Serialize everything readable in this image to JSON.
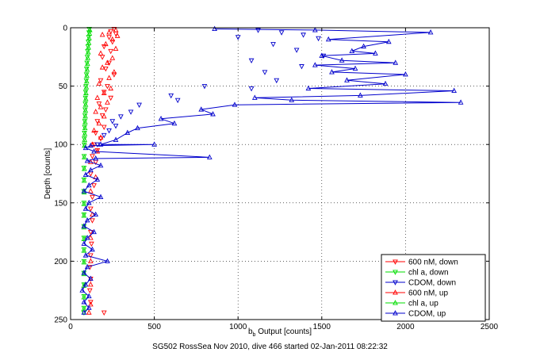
{
  "chart_data": {
    "type": "scatter",
    "xlabel_main": "b",
    "xlabel_sub": "b",
    "xlabel_rest": " Output [counts]",
    "ylabel": "Depth [counts]",
    "xlim": [
      0,
      2500
    ],
    "ylim": [
      250,
      0
    ],
    "y_reversed": true,
    "grid": true,
    "xticks": [
      0,
      500,
      1000,
      1500,
      2000,
      2500
    ],
    "yticks": [
      0,
      50,
      100,
      150,
      200,
      250
    ],
    "legend_position": "bottom-right",
    "caption": "SG502 RossSea Nov 2010, dive 466 started 02-Jan-2011 08:22:32",
    "series": [
      {
        "name": "600 nM, down",
        "color": "#ff0000",
        "marker": "triangle-down",
        "line": false,
        "points": [
          [
            260,
            1
          ],
          [
            240,
            3
          ],
          [
            270,
            5
          ],
          [
            230,
            8
          ],
          [
            250,
            12
          ],
          [
            200,
            16
          ],
          [
            240,
            20
          ],
          [
            190,
            25
          ],
          [
            230,
            30
          ],
          [
            210,
            35
          ],
          [
            260,
            40
          ],
          [
            180,
            45
          ],
          [
            220,
            50
          ],
          [
            200,
            55
          ],
          [
            240,
            60
          ],
          [
            170,
            65
          ],
          [
            210,
            70
          ],
          [
            190,
            75
          ],
          [
            160,
            80
          ],
          [
            200,
            85
          ],
          [
            150,
            90
          ],
          [
            180,
            95
          ],
          [
            140,
            100
          ],
          [
            160,
            105
          ],
          [
            130,
            110
          ],
          [
            150,
            115
          ],
          [
            120,
            125
          ],
          [
            140,
            135
          ],
          [
            130,
            145
          ],
          [
            120,
            155
          ],
          [
            130,
            165
          ],
          [
            120,
            175
          ],
          [
            125,
            185
          ],
          [
            120,
            195
          ],
          [
            115,
            205
          ],
          [
            120,
            215
          ],
          [
            115,
            225
          ],
          [
            120,
            235
          ],
          [
            200,
            244
          ]
        ]
      },
      {
        "name": "chl a, down",
        "color": "#00dd00",
        "marker": "triangle-down",
        "line": false,
        "points": [
          [
            112,
            1
          ],
          [
            110,
            4
          ],
          [
            108,
            8
          ],
          [
            106,
            12
          ],
          [
            104,
            16
          ],
          [
            102,
            20
          ],
          [
            100,
            25
          ],
          [
            98,
            30
          ],
          [
            96,
            35
          ],
          [
            95,
            40
          ],
          [
            94,
            45
          ],
          [
            92,
            50
          ],
          [
            90,
            55
          ],
          [
            89,
            60
          ],
          [
            88,
            65
          ],
          [
            87,
            70
          ],
          [
            86,
            75
          ],
          [
            85,
            80
          ],
          [
            84,
            85
          ],
          [
            83,
            90
          ],
          [
            82,
            95
          ],
          [
            82,
            100
          ],
          [
            81,
            110
          ],
          [
            80,
            120
          ],
          [
            80,
            130
          ],
          [
            80,
            140
          ],
          [
            80,
            150
          ],
          [
            80,
            160
          ],
          [
            80,
            170
          ],
          [
            80,
            180
          ],
          [
            80,
            190
          ],
          [
            80,
            200
          ],
          [
            80,
            210
          ],
          [
            80,
            220
          ],
          [
            80,
            230
          ],
          [
            80,
            240
          ],
          [
            80,
            244
          ]
        ]
      },
      {
        "name": "CDOM, down",
        "color": "#0000cc",
        "marker": "triangle-down",
        "line": false,
        "points": [
          [
            1120,
            2
          ],
          [
            1260,
            4
          ],
          [
            1390,
            6
          ],
          [
            1000,
            8
          ],
          [
            1480,
            9
          ],
          [
            1210,
            14
          ],
          [
            1350,
            19
          ],
          [
            1510,
            24
          ],
          [
            1080,
            28
          ],
          [
            1380,
            33
          ],
          [
            1160,
            38
          ],
          [
            1230,
            45
          ],
          [
            800,
            50
          ],
          [
            1080,
            52
          ],
          [
            600,
            58
          ],
          [
            640,
            62
          ],
          [
            410,
            66
          ],
          [
            360,
            72
          ],
          [
            300,
            76
          ],
          [
            250,
            80
          ],
          [
            270,
            84
          ],
          [
            230,
            88
          ],
          [
            200,
            92
          ],
          [
            160,
            100
          ]
        ]
      },
      {
        "name": "600 nM, up",
        "color": "#ff0000",
        "marker": "triangle-up",
        "line": false,
        "points": [
          [
            270,
            2
          ],
          [
            230,
            4
          ],
          [
            190,
            6
          ],
          [
            280,
            7
          ],
          [
            250,
            10
          ],
          [
            210,
            14
          ],
          [
            270,
            18
          ],
          [
            180,
            22
          ],
          [
            250,
            26
          ],
          [
            220,
            30
          ],
          [
            190,
            34
          ],
          [
            260,
            38
          ],
          [
            230,
            43
          ],
          [
            170,
            48
          ],
          [
            240,
            52
          ],
          [
            200,
            56
          ],
          [
            160,
            60
          ],
          [
            220,
            64
          ],
          [
            180,
            68
          ],
          [
            150,
            72
          ],
          [
            200,
            76
          ],
          [
            170,
            82
          ],
          [
            140,
            88
          ],
          [
            180,
            94
          ],
          [
            130,
            100
          ],
          [
            160,
            106
          ],
          [
            120,
            115
          ],
          [
            150,
            128
          ],
          [
            120,
            140
          ],
          [
            130,
            160
          ],
          [
            120,
            180
          ],
          [
            120,
            200
          ],
          [
            120,
            220
          ],
          [
            120,
            237
          ],
          [
            110,
            244
          ]
        ]
      },
      {
        "name": "chl a, up",
        "color": "#00dd00",
        "marker": "triangle-up",
        "line": false,
        "points": [
          [
            115,
            2
          ],
          [
            113,
            5
          ],
          [
            111,
            9
          ],
          [
            109,
            13
          ],
          [
            107,
            17
          ],
          [
            105,
            21
          ],
          [
            103,
            26
          ],
          [
            101,
            31
          ],
          [
            99,
            36
          ],
          [
            97,
            41
          ],
          [
            96,
            46
          ],
          [
            94,
            51
          ],
          [
            92,
            56
          ],
          [
            91,
            61
          ],
          [
            90,
            66
          ],
          [
            89,
            71
          ],
          [
            88,
            76
          ],
          [
            87,
            81
          ],
          [
            86,
            86
          ],
          [
            85,
            91
          ],
          [
            84,
            96
          ],
          [
            83,
            101
          ],
          [
            82,
            111
          ],
          [
            82,
            121
          ],
          [
            81,
            131
          ],
          [
            81,
            141
          ],
          [
            80,
            151
          ],
          [
            80,
            161
          ],
          [
            80,
            171
          ],
          [
            80,
            181
          ],
          [
            80,
            191
          ],
          [
            80,
            201
          ],
          [
            80,
            211
          ],
          [
            80,
            221
          ],
          [
            80,
            231
          ],
          [
            80,
            241
          ]
        ]
      },
      {
        "name": "CDOM, up",
        "color": "#0000cc",
        "marker": "triangle-up",
        "line": true,
        "points": [
          [
            860,
            1
          ],
          [
            1460,
            2
          ],
          [
            2150,
            4
          ],
          [
            1540,
            10
          ],
          [
            1900,
            12
          ],
          [
            1750,
            16
          ],
          [
            1680,
            20
          ],
          [
            1820,
            22
          ],
          [
            1500,
            24
          ],
          [
            1620,
            28
          ],
          [
            1940,
            30
          ],
          [
            1460,
            32
          ],
          [
            1700,
            35
          ],
          [
            1560,
            38
          ],
          [
            2000,
            40
          ],
          [
            1650,
            45
          ],
          [
            1880,
            48
          ],
          [
            1420,
            52
          ],
          [
            2290,
            54
          ],
          [
            1730,
            58
          ],
          [
            1100,
            60
          ],
          [
            1320,
            62
          ],
          [
            2330,
            64
          ],
          [
            980,
            66
          ],
          [
            780,
            70
          ],
          [
            850,
            74
          ],
          [
            540,
            78
          ],
          [
            620,
            82
          ],
          [
            400,
            86
          ],
          [
            340,
            90
          ],
          [
            270,
            96
          ],
          [
            180,
            100
          ],
          [
            500,
            100
          ],
          [
            120,
            101
          ],
          [
            90,
            103
          ],
          [
            140,
            106
          ],
          [
            830,
            111
          ],
          [
            150,
            112
          ],
          [
            100,
            114
          ],
          [
            180,
            118
          ],
          [
            120,
            122
          ],
          [
            90,
            126
          ],
          [
            160,
            130
          ],
          [
            110,
            135
          ],
          [
            80,
            140
          ],
          [
            180,
            145
          ],
          [
            110,
            150
          ],
          [
            90,
            155
          ],
          [
            150,
            160
          ],
          [
            100,
            165
          ],
          [
            80,
            170
          ],
          [
            140,
            175
          ],
          [
            100,
            180
          ],
          [
            80,
            185
          ],
          [
            130,
            190
          ],
          [
            90,
            195
          ],
          [
            220,
            200
          ],
          [
            100,
            205
          ],
          [
            80,
            210
          ],
          [
            120,
            215
          ],
          [
            90,
            220
          ],
          [
            70,
            225
          ],
          [
            110,
            230
          ],
          [
            80,
            235
          ],
          [
            110,
            240
          ],
          [
            80,
            244
          ]
        ]
      }
    ]
  }
}
